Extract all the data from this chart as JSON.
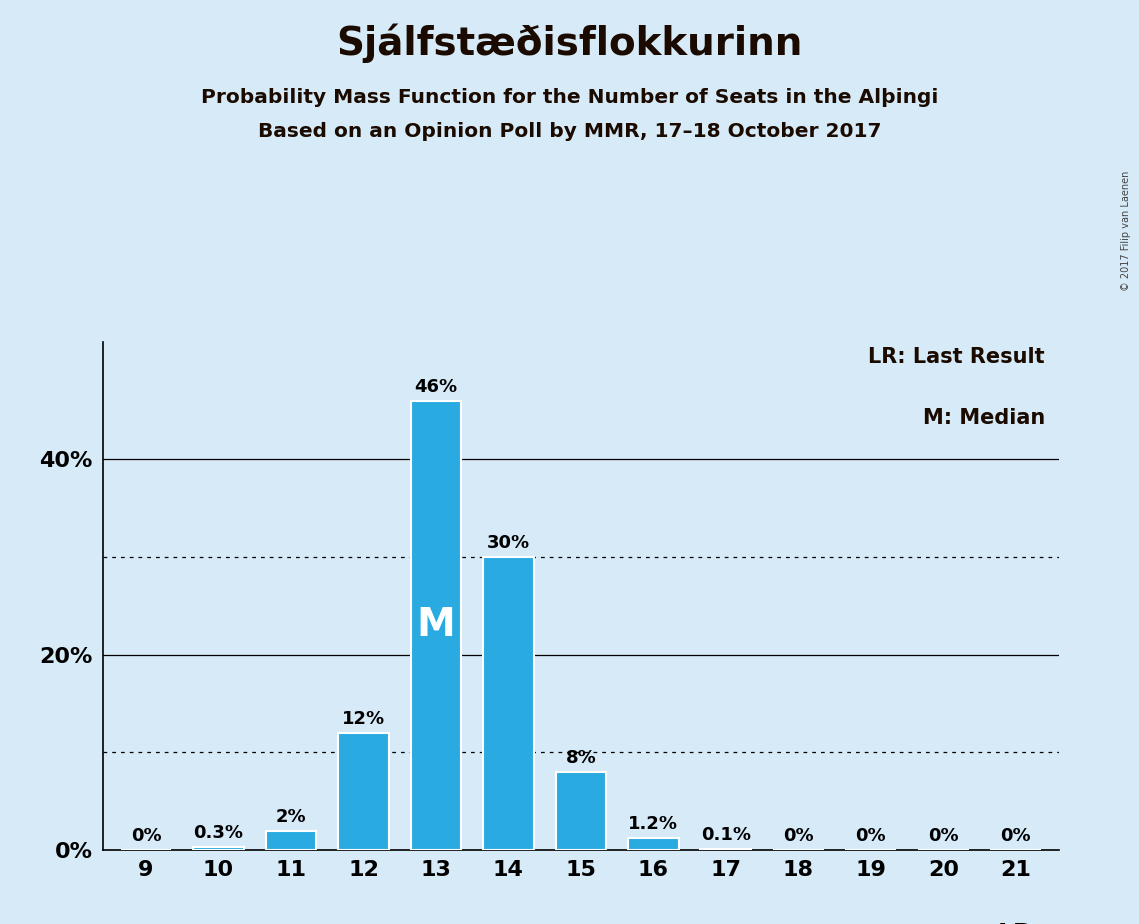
{
  "title": "Sjálfstæðisflokkurinn",
  "subtitle1": "Probability Mass Function for the Number of Seats in the Alþingi",
  "subtitle2": "Based on an Opinion Poll by MMR, 17–18 October 2017",
  "copyright_text": "© 2017 Filip van Laenen",
  "seats": [
    9,
    10,
    11,
    12,
    13,
    14,
    15,
    16,
    17,
    18,
    19,
    20,
    21
  ],
  "probabilities": [
    0.0,
    0.3,
    2.0,
    12.0,
    46.0,
    30.0,
    8.0,
    1.2,
    0.1,
    0.0,
    0.0,
    0.0,
    0.0
  ],
  "labels": [
    "0%",
    "0.3%",
    "2%",
    "12%",
    "46%",
    "30%",
    "8%",
    "1.2%",
    "0.1%",
    "0%",
    "0%",
    "0%",
    "0%"
  ],
  "bar_color": "#29ABE2",
  "background_color": "#D6EAF8",
  "median_seat": 13,
  "median_label": "M",
  "lr_seat": 21,
  "lr_label": "LR",
  "legend_line1": "LR: Last Result",
  "legend_line2": "M: Median",
  "ytick_vals": [
    0,
    20,
    40
  ],
  "ytick_labels": [
    "0%",
    "20%",
    "40%"
  ],
  "dotted_lines": [
    10,
    30
  ],
  "solid_lines": [
    20,
    40
  ],
  "ylim": [
    0,
    52
  ],
  "title_fontsize": 28,
  "subtitle_fontsize": 14.5,
  "axis_fontsize": 16,
  "bar_label_fontsize": 13,
  "median_label_fontsize": 28,
  "legend_fontsize": 15,
  "lr_fontsize": 18
}
